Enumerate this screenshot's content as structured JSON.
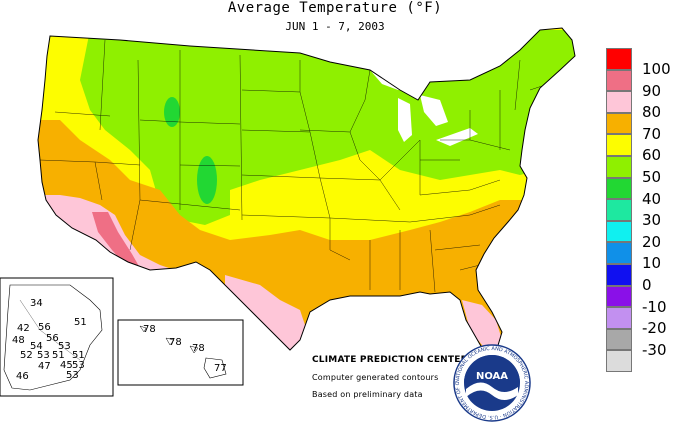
{
  "header": {
    "title": "Average Temperature (°F)",
    "subtitle": "JUN 1 - 7, 2003"
  },
  "legend": {
    "items": [
      {
        "label": "100",
        "color": "#ff0000"
      },
      {
        "label": "90",
        "color": "#ef6f85"
      },
      {
        "label": "80",
        "color": "#fec6d8"
      },
      {
        "label": "70",
        "color": "#f7b000"
      },
      {
        "label": "60",
        "color": "#fdfd00"
      },
      {
        "label": "50",
        "color": "#8ff000"
      },
      {
        "label": "40",
        "color": "#22d733"
      },
      {
        "label": "30",
        "color": "#1ee8a0"
      },
      {
        "label": "20",
        "color": "#10f0f0"
      },
      {
        "label": "10",
        "color": "#1090e8"
      },
      {
        "label": "0",
        "color": "#1010f0"
      },
      {
        "label": "-10",
        "color": "#8a10e8"
      },
      {
        "label": "-20",
        "color": "#c290f0"
      },
      {
        "label": "-30",
        "color": "#a8a8a8"
      }
    ],
    "last_swatch_color": "#dcdcdc"
  },
  "alaska": {
    "readings": [
      "34",
      "42",
      "56",
      "56",
      "51",
      "48",
      "54",
      "53",
      "51",
      "53",
      "52",
      "47",
      "45",
      "53",
      "51",
      "53",
      "46"
    ]
  },
  "hawaii": {
    "readings": [
      "78",
      "78",
      "78",
      "77"
    ]
  },
  "credits": {
    "line1": "CLIMATE PREDICTION CENTER, NOAA",
    "line2": "Computer generated contours",
    "line3": "Based on preliminary data"
  },
  "logo": {
    "text": "NOAA",
    "ring_text": "NATIONAL OCEANIC AND ATMOSPHERIC ADMINISTRATION · U.S. DEPARTMENT OF COMMERCE"
  }
}
